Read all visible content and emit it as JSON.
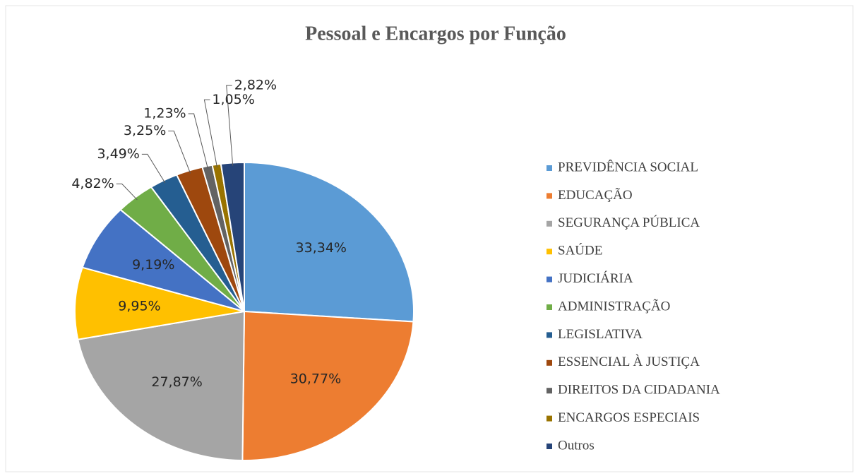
{
  "chart_data": {
    "type": "pie",
    "title": "Pessoal e Encargos por Função",
    "categories": [
      "PREVIDÊNCIA SOCIAL",
      "EDUCAÇÃO",
      "SEGURANÇA PÚBLICA",
      "SAÚDE",
      "JUDICIÁRIA",
      "ADMINISTRAÇÃO",
      "LEGISLATIVA",
      "ESSENCIAL À JUSTIÇA",
      "DIREITOS DA CIDADANIA",
      "ENCARGOS ESPECIAIS",
      "Outros"
    ],
    "values": [
      33.34,
      30.77,
      27.87,
      9.95,
      9.19,
      4.82,
      3.49,
      3.25,
      1.23,
      1.05,
      2.82
    ],
    "value_labels": [
      "33,34%",
      "30,77%",
      "27,87%",
      "9,95%",
      "9,19%",
      "4,82%",
      "3,49%",
      "3,25%",
      "1,23%",
      "1,05%",
      "2,82%"
    ],
    "colors": [
      "#5b9bd5",
      "#ed7d31",
      "#a5a5a5",
      "#ffc000",
      "#4472c4",
      "#70ad47",
      "#255e91",
      "#9e480e",
      "#636363",
      "#997300",
      "#264478"
    ],
    "legend": "right"
  }
}
